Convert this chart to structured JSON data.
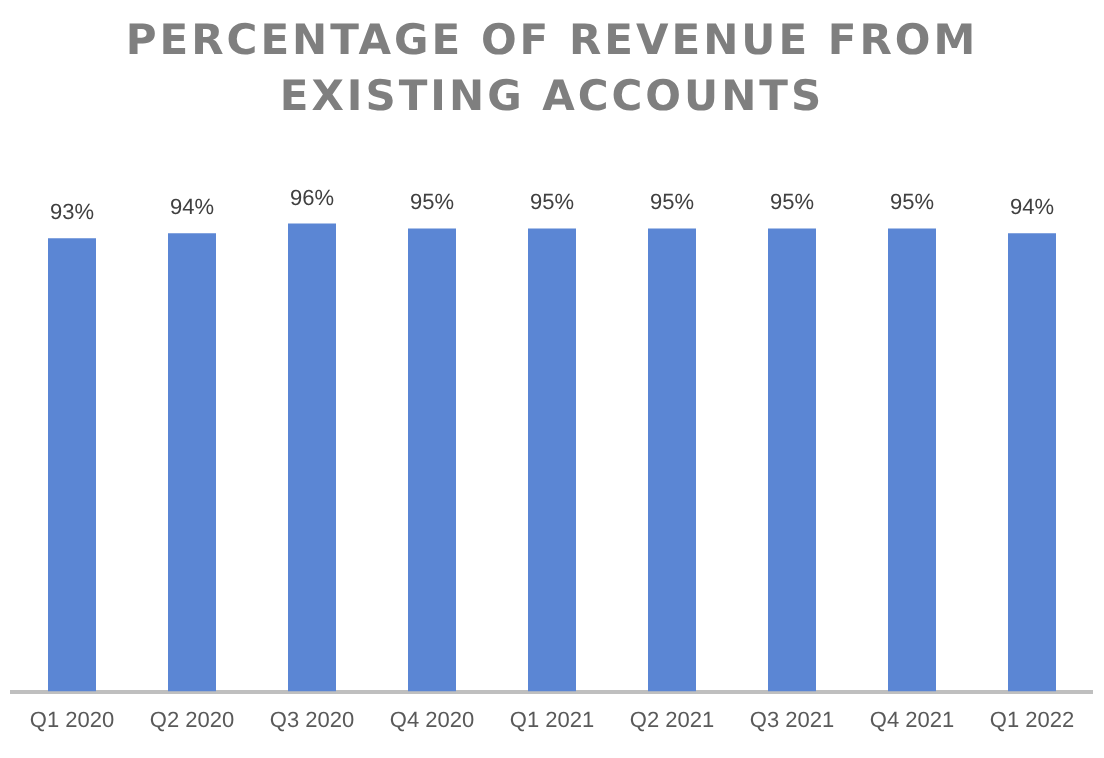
{
  "chart_data": {
    "type": "bar",
    "title": "PERCENTAGE OF REVENUE FROM EXISTING ACCOUNTS",
    "categories": [
      "Q1 2020",
      "Q2 2020",
      "Q3 2020",
      "Q4 2020",
      "Q1 2021",
      "Q2 2021",
      "Q3 2021",
      "Q4 2021",
      "Q1 2022"
    ],
    "values": [
      93,
      94,
      96,
      95,
      95,
      95,
      95,
      95,
      94
    ],
    "value_labels": [
      "93%",
      "94%",
      "96%",
      "95%",
      "95%",
      "95%",
      "95%",
      "95%",
      "94%"
    ],
    "color": "#5b86d4",
    "tick_labels": "x",
    "grid": false,
    "legend": false
  }
}
